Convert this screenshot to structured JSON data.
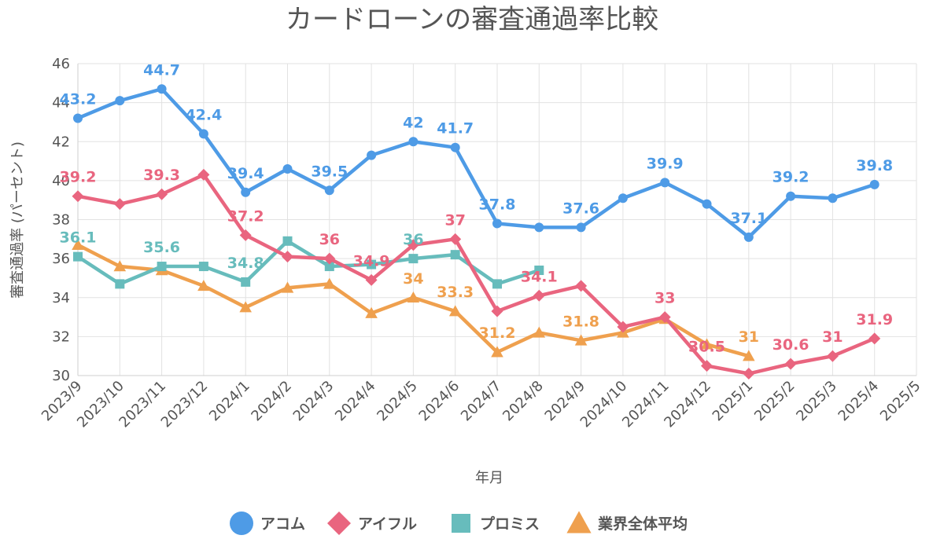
{
  "chart_data": {
    "type": "line",
    "title": "カードローンの審査通過率比較",
    "xlabel": "年月",
    "ylabel": "審査通過率 (パーセント)",
    "ylim": [
      30,
      46
    ],
    "yticks": [
      30,
      32,
      34,
      36,
      38,
      40,
      42,
      44,
      46
    ],
    "grid": true,
    "legend_position": "bottom",
    "categories": [
      "2023/9",
      "2023/10",
      "2023/11",
      "2023/12",
      "2024/1",
      "2024/2",
      "2024/3",
      "2024/4",
      "2024/5",
      "2024/6",
      "2024/7",
      "2024/8",
      "2024/9",
      "2024/10",
      "2024/11",
      "2024/12",
      "2025/1",
      "2025/2",
      "2025/3",
      "2025/4",
      "2025/5"
    ],
    "series": [
      {
        "name": "アコム",
        "color": "#4e9be6",
        "marker": "circle",
        "values": [
          43.2,
          44.1,
          44.7,
          42.4,
          39.4,
          40.6,
          39.5,
          41.3,
          42,
          41.7,
          37.8,
          37.6,
          37.6,
          39.1,
          39.9,
          38.8,
          37.1,
          39.2,
          39.1,
          39.8,
          null
        ],
        "labels": [
          "43.2",
          null,
          "44.7",
          "42.4",
          "39.4",
          null,
          "39.5",
          null,
          "42",
          "41.7",
          "37.8",
          null,
          "37.6",
          null,
          "39.9",
          null,
          "37.1",
          "39.2",
          null,
          "39.8",
          null
        ]
      },
      {
        "name": "アイフル",
        "color": "#e9657f",
        "marker": "diamond",
        "values": [
          39.2,
          38.8,
          39.3,
          40.3,
          37.2,
          36.1,
          36,
          34.9,
          36.7,
          37,
          33.3,
          34.1,
          34.6,
          32.5,
          33,
          30.5,
          30.1,
          30.6,
          31,
          31.9,
          null
        ],
        "labels": [
          "39.2",
          null,
          "39.3",
          null,
          "37.2",
          null,
          "36",
          "34.9",
          null,
          "37",
          null,
          "34.1",
          null,
          null,
          "33",
          "30.5",
          null,
          "30.6",
          "31",
          "31.9",
          null
        ]
      },
      {
        "name": "プロミス",
        "color": "#67bcbc",
        "marker": "square",
        "values": [
          36.1,
          34.7,
          35.6,
          35.6,
          34.8,
          36.9,
          35.6,
          35.7,
          36,
          36.2,
          34.7,
          35.4,
          null,
          null,
          null,
          null,
          null,
          null,
          null,
          null,
          null
        ],
        "labels": [
          "36.1",
          null,
          "35.6",
          null,
          "34.8",
          null,
          null,
          null,
          "36",
          null,
          null,
          null,
          null,
          null,
          null,
          null,
          null,
          null,
          null,
          null,
          null
        ]
      },
      {
        "name": "業界全体平均",
        "color": "#efa04e",
        "marker": "triangle",
        "values": [
          36.7,
          35.6,
          35.4,
          34.6,
          33.5,
          34.5,
          34.7,
          33.2,
          34,
          33.3,
          31.2,
          32.2,
          31.8,
          32.2,
          32.9,
          31.6,
          31,
          null,
          null,
          null,
          null
        ],
        "labels": [
          null,
          null,
          null,
          null,
          null,
          null,
          null,
          null,
          "34",
          "33.3",
          "31.2",
          null,
          "31.8",
          null,
          null,
          null,
          "31",
          null,
          null,
          null,
          null
        ]
      }
    ]
  }
}
